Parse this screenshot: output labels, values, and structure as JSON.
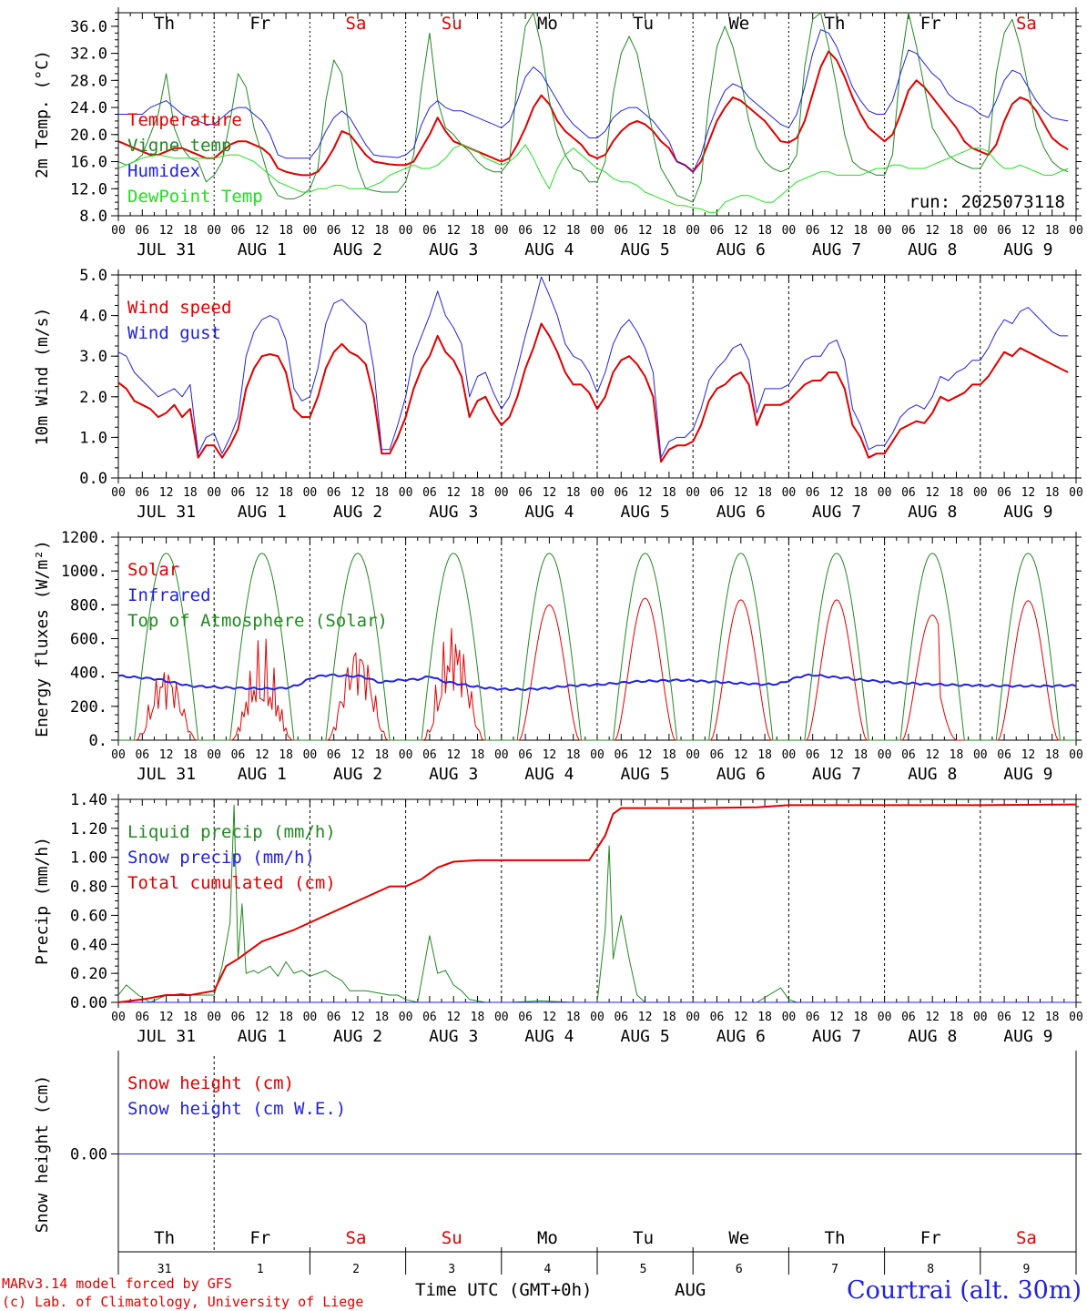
{
  "footer": {
    "model": "MARv3.14 model forced by GFS",
    "lab": "(c) Lab. of Climatology, University of Liege",
    "time_label": "Time UTC (GMT+0h)",
    "month": "AUG",
    "location": "Courtrai (alt. 30m)"
  },
  "chart_data": {
    "days": [
      "Th",
      "Fr",
      "Sa",
      "Su",
      "Mo",
      "Tu",
      "We",
      "Th",
      "Fr",
      "Sa"
    ],
    "weekend_days": [
      "Sa",
      "Su"
    ],
    "date_labels": [
      "JUL 31",
      "AUG  1",
      "AUG  2",
      "AUG  3",
      "AUG  4",
      "AUG  5",
      "AUG  6",
      "AUG  7",
      "AUG  8",
      "AUG  9"
    ],
    "hour_ticks": [
      "00",
      "06",
      "12",
      "18"
    ],
    "bottom_day_numbers": [
      "31",
      "1",
      "2",
      "3",
      "4",
      "5",
      "6",
      "7",
      "8",
      "9"
    ],
    "run_label": "run: 2025073118",
    "panels": [
      {
        "type": "line",
        "ylabel": "2m Temp. (°C)",
        "ylim": [
          8,
          38
        ],
        "yticks": [
          "8.0",
          "12.0",
          "16.0",
          "20.0",
          "24.0",
          "28.0",
          "32.0",
          "36.0"
        ],
        "series": [
          {
            "name": "Temperature",
            "color": "#e00000",
            "width": 2,
            "values": [
              19,
              18.5,
              18,
              17.5,
              17,
              17,
              17.5,
              18,
              18,
              17.5,
              17,
              16.5,
              16.5,
              17.5,
              18.5,
              19,
              19,
              18.5,
              18,
              17,
              15,
              14.5,
              14.2,
              14,
              14,
              14.5,
              16,
              18,
              20.5,
              20,
              18.5,
              17,
              16,
              15.8,
              15.6,
              15.5,
              15.5,
              16,
              18,
              20,
              22.5,
              20.5,
              19,
              18.5,
              18,
              17.5,
              17,
              16.5,
              16,
              16.5,
              18.5,
              21,
              24,
              25.8,
              24.5,
              22,
              20.5,
              19.5,
              18.5,
              17,
              16.5,
              17,
              19,
              20.5,
              21.5,
              22,
              21.5,
              20.5,
              19,
              18,
              16,
              15.5,
              14.5,
              16,
              19,
              22,
              24,
              25.5,
              25,
              24,
              23,
              22,
              20.5,
              19,
              18.8,
              19.5,
              22,
              26,
              30,
              32.3,
              31,
              28.5,
              25.5,
              23,
              21,
              20,
              19,
              20,
              23,
              26.5,
              28,
              27,
              25.5,
              24,
              22.5,
              21,
              19,
              18,
              17.5,
              17,
              18.5,
              22,
              24.5,
              25.5,
              25,
              23.5,
              21.5,
              19.5,
              18.5,
              17.8
            ]
          },
          {
            "name": "Vigne temp",
            "color": "#228822",
            "width": 1,
            "values": [
              16,
              15.5,
              16,
              17,
              20,
              23,
              29,
              21,
              18,
              16.5,
              16,
              13,
              14,
              16,
              22,
              29,
              27,
              21,
              17,
              13,
              11,
              10.5,
              10.5,
              11,
              12,
              15,
              25,
              31,
              29,
              20,
              15,
              12,
              11.7,
              11.5,
              11.5,
              11.5,
              13,
              17,
              27,
              35,
              25,
              21,
              20,
              18.5,
              17.5,
              16,
              15,
              14.5,
              14.5,
              16,
              28,
              36,
              38,
              33,
              25,
              20,
              17,
              15,
              14.5,
              13,
              13,
              16,
              26,
              32,
              34.5,
              32,
              26,
              20,
              15,
              13,
              11,
              10.5,
              10,
              13,
              25,
              33,
              36,
              33,
              28,
              22,
              18,
              16,
              15,
              14.5,
              15,
              17,
              30,
              37,
              38,
              33,
              27,
              20,
              16,
              15,
              14.5,
              14,
              14,
              17,
              30,
              38,
              33,
              27,
              21,
              19,
              17,
              16,
              15.5,
              15,
              15,
              17,
              29,
              35,
              37,
              33,
              27,
              21,
              18,
              16,
              15,
              14.5
            ]
          },
          {
            "name": "Humidex",
            "color": "#2222dd",
            "width": 1,
            "values": [
              23,
              23,
              23,
              23,
              24,
              24.5,
              25,
              24,
              23,
              22.5,
              22,
              21.5,
              21.5,
              22.5,
              23.5,
              24,
              24,
              23,
              22,
              20,
              17,
              16.5,
              16.5,
              16.5,
              16.5,
              18,
              20.5,
              22.5,
              23.5,
              22.5,
              20.5,
              18.5,
              17,
              16.8,
              16.7,
              16.6,
              17,
              18,
              21.5,
              24,
              25,
              24,
              23.5,
              23.5,
              23,
              22.5,
              22,
              21.5,
              21,
              22,
              25,
              28.5,
              30,
              29,
              27,
              25,
              23,
              21.5,
              20.5,
              19.5,
              19.5,
              20.5,
              22.5,
              23.5,
              24,
              24,
              23,
              22,
              20.5,
              19,
              16,
              15.5,
              14.5,
              17,
              21,
              24,
              26.5,
              27.5,
              27,
              25.5,
              24.5,
              23.5,
              22.5,
              21.5,
              21,
              23,
              27,
              32,
              35.5,
              35,
              33,
              30,
              27,
              25,
              23.5,
              23,
              23,
              25,
              29,
              32.5,
              32,
              30.5,
              29,
              28,
              26,
              25,
              24.5,
              24,
              23,
              22.5,
              25,
              28,
              29.5,
              29,
              27,
              25,
              23.5,
              22.5,
              22.2,
              22
            ]
          },
          {
            "name": "DewPoint Temp",
            "color": "#22dd22",
            "width": 1,
            "values": [
              15,
              15.5,
              16,
              16.5,
              16.8,
              17,
              16.8,
              16.5,
              16.5,
              16.5,
              16.5,
              16.5,
              16.5,
              16.8,
              17,
              17,
              16.5,
              16,
              15,
              14,
              13,
              12.5,
              12,
              11.5,
              11.5,
              12,
              12,
              12.5,
              12.5,
              12,
              12,
              12,
              12.5,
              13,
              14,
              14.5,
              15,
              15.5,
              15,
              15,
              15.5,
              16.5,
              18,
              18.5,
              18,
              17.5,
              16.5,
              16,
              15.5,
              16,
              17,
              18.5,
              16.5,
              14,
              12,
              15,
              17,
              18,
              17,
              16,
              15,
              14.5,
              13.5,
              13,
              13,
              12.5,
              11.5,
              11,
              10.5,
              10,
              9.5,
              9.5,
              9.2,
              9,
              8.5,
              8.5,
              10,
              10.5,
              11,
              11,
              10.5,
              10,
              10,
              11,
              12,
              13,
              13.5,
              14,
              14.5,
              14.5,
              14,
              14,
              14,
              14,
              14.5,
              15,
              15,
              15.5,
              15.5,
              15,
              15,
              15,
              15.5,
              16,
              16.5,
              17,
              17.5,
              18,
              18,
              17.5,
              16,
              15,
              15,
              15.5,
              15,
              14.5,
              14,
              14,
              14.5,
              15
            ]
          }
        ]
      },
      {
        "type": "line",
        "ylabel": "10m Wind (m/s)",
        "ylim": [
          0,
          5
        ],
        "yticks": [
          "0.0",
          "1.0",
          "2.0",
          "3.0",
          "4.0",
          "5.0"
        ],
        "series": [
          {
            "name": "Wind speed",
            "color": "#e00000",
            "width": 2,
            "values": [
              2.35,
              2.2,
              1.9,
              1.8,
              1.7,
              1.5,
              1.6,
              1.8,
              1.5,
              1.7,
              0.5,
              0.8,
              0.8,
              0.5,
              0.8,
              1.2,
              2.2,
              2.7,
              3.0,
              3.05,
              3.0,
              2.6,
              1.7,
              1.5,
              1.5,
              2.0,
              2.7,
              3.1,
              3.3,
              3.1,
              3.0,
              2.8,
              2.0,
              0.6,
              0.6,
              1.0,
              1.5,
              2.2,
              2.7,
              3.0,
              3.5,
              3.1,
              2.9,
              2.5,
              1.5,
              1.9,
              2.0,
              1.6,
              1.3,
              1.5,
              2.0,
              2.7,
              3.2,
              3.8,
              3.5,
              3.1,
              2.6,
              2.3,
              2.3,
              2.1,
              1.7,
              2.0,
              2.6,
              2.9,
              3.0,
              2.8,
              2.5,
              2.0,
              0.4,
              0.7,
              0.8,
              0.8,
              0.9,
              1.3,
              1.9,
              2.2,
              2.3,
              2.5,
              2.6,
              2.3,
              1.3,
              1.8,
              1.8,
              1.8,
              1.9,
              2.1,
              2.3,
              2.4,
              2.4,
              2.6,
              2.6,
              2.2,
              1.3,
              1.0,
              0.5,
              0.6,
              0.6,
              0.9,
              1.2,
              1.3,
              1.4,
              1.35,
              1.6,
              2.0,
              1.9,
              2.0,
              2.1,
              2.3,
              2.3,
              2.5,
              2.8,
              3.1,
              3.0,
              3.2,
              3.1,
              3.0,
              2.9,
              2.8,
              2.7,
              2.6
            ]
          },
          {
            "name": "Wind gust",
            "color": "#2222dd",
            "width": 1,
            "values": [
              3.1,
              3.0,
              2.6,
              2.4,
              2.2,
              2.0,
              2.1,
              2.2,
              2.0,
              2.3,
              0.6,
              1.0,
              1.1,
              0.6,
              1.0,
              1.5,
              3.0,
              3.6,
              3.9,
              4.0,
              3.9,
              3.4,
              2.2,
              1.9,
              2.0,
              2.7,
              3.8,
              4.3,
              4.4,
              4.2,
              4.0,
              3.8,
              2.7,
              0.7,
              0.7,
              1.3,
              2.0,
              3.0,
              3.5,
              4.0,
              4.6,
              4.0,
              3.7,
              3.3,
              2.0,
              2.5,
              2.6,
              2.1,
              1.7,
              2.0,
              2.7,
              3.5,
              4.2,
              4.95,
              4.5,
              4.0,
              3.3,
              3.0,
              2.9,
              2.6,
              2.1,
              2.6,
              3.3,
              3.7,
              3.9,
              3.6,
              3.2,
              2.6,
              0.5,
              0.9,
              1.0,
              1.0,
              1.2,
              1.7,
              2.4,
              2.7,
              2.9,
              3.2,
              3.3,
              2.9,
              1.6,
              2.2,
              2.2,
              2.2,
              2.3,
              2.6,
              2.9,
              3.0,
              3.0,
              3.3,
              3.4,
              2.9,
              1.7,
              1.3,
              0.7,
              0.8,
              0.8,
              1.1,
              1.5,
              1.7,
              1.8,
              1.7,
              2.0,
              2.5,
              2.4,
              2.6,
              2.7,
              2.9,
              2.9,
              3.2,
              3.6,
              3.9,
              3.8,
              4.1,
              4.2,
              4.0,
              3.8,
              3.6,
              3.5,
              3.5
            ]
          }
        ]
      },
      {
        "type": "line",
        "ylabel": "Energy fluxes (W/m²)",
        "ylim": [
          0,
          1200
        ],
        "yticks": [
          "0.",
          "200.",
          "400.",
          "600.",
          "800.",
          "1000.",
          "1200."
        ],
        "series": [
          {
            "name": "Solar",
            "color": "#e00000",
            "width": 1,
            "generator": "solar"
          },
          {
            "name": "Infrared",
            "color": "#2222dd",
            "width": 2,
            "generator": "infrared"
          },
          {
            "name": "Top of Atmosphere (Solar)",
            "color": "#228822",
            "width": 1,
            "generator": "toa"
          }
        ]
      },
      {
        "type": "line",
        "ylabel": "Precip (mm/h)",
        "ylim": [
          0,
          1.4
        ],
        "yticks": [
          "0.00",
          "0.20",
          "0.40",
          "0.60",
          "0.80",
          "1.00",
          "1.20",
          "1.40"
        ],
        "series": [
          {
            "name": "Liquid precip (mm/h)",
            "color": "#228822",
            "width": 1,
            "generator": "liquid"
          },
          {
            "name": "Snow precip (mm/h)",
            "color": "#2222dd",
            "width": 1,
            "generator": "snow"
          },
          {
            "name": "Total cumulated (cm)",
            "color": "#e00000",
            "width": 2,
            "generator": "cumul"
          }
        ]
      },
      {
        "type": "line",
        "ylabel": "Snow height (cm)",
        "ylim": [
          -1,
          1
        ],
        "yticks": [
          "0.00"
        ],
        "series": [
          {
            "name": "Snow height (cm)",
            "color": "#e00000",
            "width": 1,
            "values": [
              0,
              0
            ]
          },
          {
            "name": "Snow height (cm W.E.)",
            "color": "#2222dd",
            "width": 1,
            "values": [
              0,
              0
            ]
          }
        ]
      }
    ]
  }
}
